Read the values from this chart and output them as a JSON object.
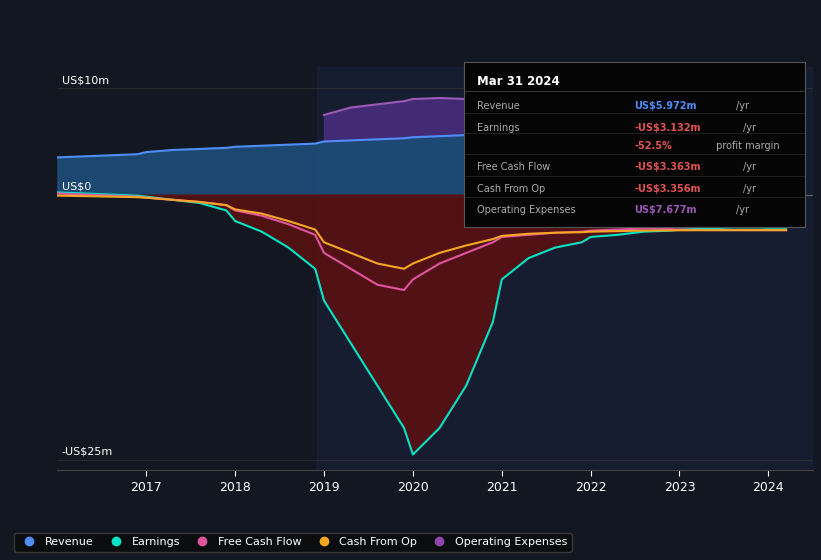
{
  "background_color": "#131722",
  "plot_bg_color": "#131722",
  "ylabel_top": "US$10m",
  "ylabel_zero": "US$0",
  "ylabel_bottom": "-US$25m",
  "ylim": [
    -26,
    12
  ],
  "xlim": [
    2016.0,
    2024.5
  ],
  "xticks": [
    2017,
    2018,
    2019,
    2020,
    2021,
    2022,
    2023,
    2024
  ],
  "info_box": {
    "date": "Mar 31 2024",
    "rows": [
      {
        "label": "Revenue",
        "value": "US$5.972m",
        "unit": "/yr",
        "value_color": "#4f8ef7"
      },
      {
        "label": "Earnings",
        "value": "-US$3.132m",
        "unit": "/yr",
        "value_color": "#e05252"
      },
      {
        "label": "",
        "value": "-52.5%",
        "unit": " profit margin",
        "value_color": "#e05252"
      },
      {
        "label": "Free Cash Flow",
        "value": "-US$3.363m",
        "unit": "/yr",
        "value_color": "#e05252"
      },
      {
        "label": "Cash From Op",
        "value": "-US$3.356m",
        "unit": "/yr",
        "value_color": "#e05252"
      },
      {
        "label": "Operating Expenses",
        "value": "US$7.677m",
        "unit": "/yr",
        "value_color": "#9b59b6"
      }
    ]
  },
  "legend": [
    {
      "label": "Revenue",
      "color": "#4f8ef7"
    },
    {
      "label": "Earnings",
      "color": "#00e5c8"
    },
    {
      "label": "Free Cash Flow",
      "color": "#e054a0"
    },
    {
      "label": "Cash From Op",
      "color": "#f5a623"
    },
    {
      "label": "Operating Expenses",
      "color": "#8e44ad"
    }
  ],
  "series": {
    "x": [
      2016.0,
      2016.3,
      2016.6,
      2016.9,
      2017.0,
      2017.3,
      2017.6,
      2017.9,
      2018.0,
      2018.3,
      2018.6,
      2018.9,
      2019.0,
      2019.3,
      2019.6,
      2019.9,
      2020.0,
      2020.3,
      2020.6,
      2020.9,
      2021.0,
      2021.3,
      2021.6,
      2021.9,
      2022.0,
      2022.3,
      2022.6,
      2022.9,
      2023.0,
      2023.3,
      2023.6,
      2023.9,
      2024.0,
      2024.2
    ],
    "revenue": [
      3.5,
      3.6,
      3.7,
      3.8,
      4.0,
      4.2,
      4.3,
      4.4,
      4.5,
      4.6,
      4.7,
      4.8,
      5.0,
      5.1,
      5.2,
      5.3,
      5.4,
      5.5,
      5.6,
      5.7,
      5.8,
      5.9,
      6.0,
      6.1,
      6.2,
      6.4,
      6.5,
      6.3,
      6.1,
      6.0,
      5.9,
      5.9,
      5.972,
      5.972
    ],
    "op_expenses": [
      0,
      0,
      0,
      0,
      0,
      0,
      0,
      0,
      0,
      0,
      0,
      0,
      7.5,
      8.2,
      8.5,
      8.8,
      9.0,
      9.1,
      9.0,
      8.8,
      8.6,
      8.4,
      8.5,
      8.7,
      8.9,
      9.5,
      9.8,
      9.3,
      9.5,
      9.2,
      8.9,
      8.5,
      8.3,
      7.677
    ],
    "earnings": [
      0.2,
      0.1,
      0.0,
      -0.1,
      -0.2,
      -0.5,
      -0.8,
      -1.5,
      -2.5,
      -3.5,
      -5.0,
      -7.0,
      -10.0,
      -14.0,
      -18.0,
      -22.0,
      -24.5,
      -22.0,
      -18.0,
      -12.0,
      -8.0,
      -6.0,
      -5.0,
      -4.5,
      -4.0,
      -3.8,
      -3.5,
      -3.4,
      -3.3,
      -3.2,
      -3.1,
      -3.1,
      -3.132,
      -3.132
    ],
    "free_cash_flow": [
      0.1,
      0.0,
      -0.1,
      -0.2,
      -0.3,
      -0.5,
      -0.7,
      -1.0,
      -1.5,
      -2.0,
      -2.8,
      -3.8,
      -5.5,
      -7.0,
      -8.5,
      -9.0,
      -8.0,
      -6.5,
      -5.5,
      -4.5,
      -4.0,
      -3.8,
      -3.6,
      -3.5,
      -3.4,
      -3.3,
      -3.2,
      -3.25,
      -3.3,
      -3.35,
      -3.35,
      -3.36,
      -3.363,
      -3.363
    ],
    "cash_from_op": [
      -0.1,
      -0.15,
      -0.2,
      -0.25,
      -0.3,
      -0.5,
      -0.7,
      -1.0,
      -1.4,
      -1.8,
      -2.5,
      -3.3,
      -4.5,
      -5.5,
      -6.5,
      -7.0,
      -6.5,
      -5.5,
      -4.8,
      -4.2,
      -3.9,
      -3.7,
      -3.6,
      -3.55,
      -3.5,
      -3.45,
      -3.4,
      -3.38,
      -3.37,
      -3.36,
      -3.36,
      -3.356,
      -3.356,
      -3.356
    ]
  },
  "shade_region": [
    2018.92,
    2024.5
  ],
  "shade_color": "#1a2340",
  "colors": {
    "revenue_fill": "#1e5080",
    "revenue_line": "#4f8ef7",
    "earnings_fill": "#5c1010",
    "earnings_line": "#00e5c8",
    "free_cash_flow_line": "#e054a0",
    "cash_from_op_line": "#f5a623",
    "op_expenses_fill": "#4b2d80",
    "op_expenses_line": "#9b59b6",
    "zero_line": "#888888"
  }
}
